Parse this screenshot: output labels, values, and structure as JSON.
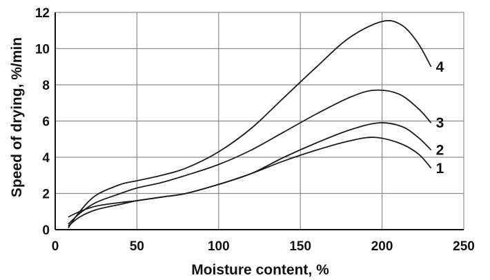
{
  "chart_data": {
    "type": "line",
    "title": "",
    "xlabel": "Moisture content, %",
    "ylabel": "Speed of drying, %/min",
    "xlim": [
      0,
      250
    ],
    "ylim": [
      0,
      12
    ],
    "x_ticks": [
      "0",
      "50",
      "100",
      "150",
      "200",
      "250"
    ],
    "y_ticks": [
      "0",
      "2",
      "4",
      "6",
      "8",
      "10",
      "12"
    ],
    "grid": true,
    "series": [
      {
        "name": "1",
        "x": [
          8,
          15,
          25,
          40,
          50,
          65,
          80,
          100,
          120,
          140,
          160,
          180,
          195,
          210,
          222,
          230
        ],
        "y": [
          0.2,
          0.7,
          1.1,
          1.4,
          1.6,
          1.8,
          2.0,
          2.5,
          3.1,
          3.8,
          4.4,
          4.9,
          5.1,
          4.8,
          4.2,
          3.4
        ]
      },
      {
        "name": "2",
        "x": [
          8,
          15,
          25,
          40,
          50,
          65,
          80,
          100,
          120,
          140,
          160,
          180,
          198,
          212,
          222,
          230
        ],
        "y": [
          0.7,
          1.0,
          1.3,
          1.5,
          1.6,
          1.8,
          2.0,
          2.5,
          3.1,
          4.0,
          4.8,
          5.5,
          5.9,
          5.7,
          5.1,
          4.4
        ]
      },
      {
        "name": "3",
        "x": [
          8,
          15,
          25,
          40,
          50,
          65,
          80,
          100,
          120,
          140,
          160,
          180,
          195,
          210,
          222,
          230
        ],
        "y": [
          0.3,
          0.9,
          1.5,
          2.0,
          2.3,
          2.6,
          3.0,
          3.6,
          4.4,
          5.4,
          6.4,
          7.3,
          7.7,
          7.5,
          6.7,
          5.9
        ]
      },
      {
        "name": "4",
        "x": [
          8,
          15,
          25,
          40,
          50,
          65,
          80,
          100,
          120,
          140,
          160,
          180,
          200,
          212,
          222,
          230
        ],
        "y": [
          0.1,
          1.0,
          1.9,
          2.5,
          2.7,
          3.0,
          3.4,
          4.3,
          5.6,
          7.3,
          9.0,
          10.6,
          11.5,
          11.3,
          10.3,
          9.0
        ]
      }
    ]
  }
}
